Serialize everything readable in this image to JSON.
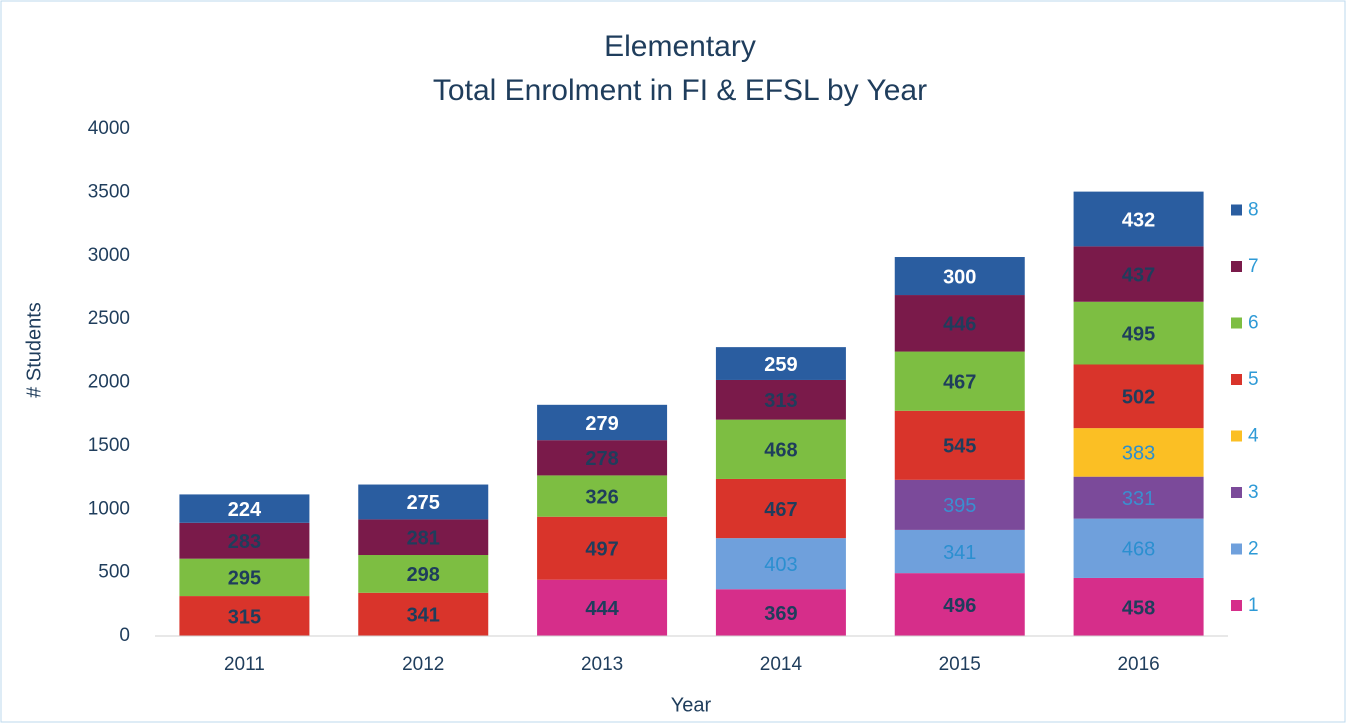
{
  "chart_data": {
    "type": "stacked_bar",
    "title": [
      "Elementary",
      "Total Enrolment in FI & EFSL by Year"
    ],
    "x_label": "Year",
    "y_label": "# Students",
    "categories": [
      "2011",
      "2012",
      "2013",
      "2014",
      "2015",
      "2016"
    ],
    "series": [
      {
        "name": "1",
        "color": "#d62e8a",
        "label_color": "#1f3d5c",
        "values": [
          null,
          null,
          444,
          369,
          496,
          458
        ]
      },
      {
        "name": "2",
        "color": "#6fa0dc",
        "label_color": "#2b8fd0",
        "values": [
          null,
          null,
          null,
          403,
          341,
          468
        ]
      },
      {
        "name": "3",
        "color": "#7b4a9a",
        "label_color": "#3a8fd0",
        "values": [
          null,
          null,
          null,
          null,
          395,
          331
        ]
      },
      {
        "name": "4",
        "color": "#fbbf24",
        "label_color": "#2b8fd0",
        "values": [
          null,
          null,
          null,
          null,
          null,
          383
        ]
      },
      {
        "name": "5",
        "color": "#d9342b",
        "label_color": "#1f3d5c",
        "values": [
          315,
          341,
          497,
          467,
          545,
          502
        ]
      },
      {
        "name": "6",
        "color": "#7dbe42",
        "label_color": "#1f3d5c",
        "values": [
          295,
          298,
          326,
          468,
          467,
          495
        ]
      },
      {
        "name": "7",
        "color": "#7a1a4a",
        "label_color": "#1f3d5c",
        "values": [
          283,
          281,
          278,
          313,
          446,
          437
        ]
      },
      {
        "name": "8",
        "color": "#2a5da0",
        "label_color": "#ffffff",
        "values": [
          224,
          275,
          279,
          259,
          300,
          432
        ]
      }
    ],
    "ylim": [
      0,
      4000
    ],
    "yticks": [
      0,
      500,
      1000,
      1500,
      2000,
      2500,
      3000,
      3500,
      4000
    ],
    "grid": false,
    "legend": "right"
  }
}
